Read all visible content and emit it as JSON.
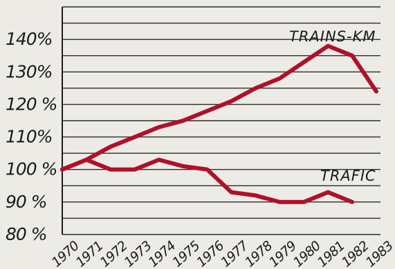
{
  "chart_data": {
    "type": "line",
    "title": "",
    "xlabel": "",
    "ylabel": "",
    "categories": [
      "1970",
      "1971",
      "1972",
      "1973",
      "1974",
      "1975",
      "1976",
      "1977",
      "1978",
      "1979",
      "1980",
      "1981",
      "1982",
      "1983"
    ],
    "y_ticks": [
      "80 %",
      "90 %",
      "100 %",
      "110%",
      "120 %",
      "130%",
      "140%"
    ],
    "y_tick_values": [
      80,
      90,
      100,
      110,
      120,
      130,
      140
    ],
    "ylim": [
      80,
      150
    ],
    "grid": true,
    "series": [
      {
        "name": "TRAINS-KM",
        "color": "#b0102a",
        "values": [
          100,
          103,
          107,
          110,
          113,
          115,
          118,
          121,
          125,
          128,
          133,
          138,
          135,
          124
        ]
      },
      {
        "name": "TRAFIC",
        "color": "#b0102a",
        "values": [
          100,
          103,
          100,
          100,
          103,
          101,
          100,
          93,
          92,
          90,
          90,
          93,
          90,
          null
        ]
      }
    ]
  }
}
